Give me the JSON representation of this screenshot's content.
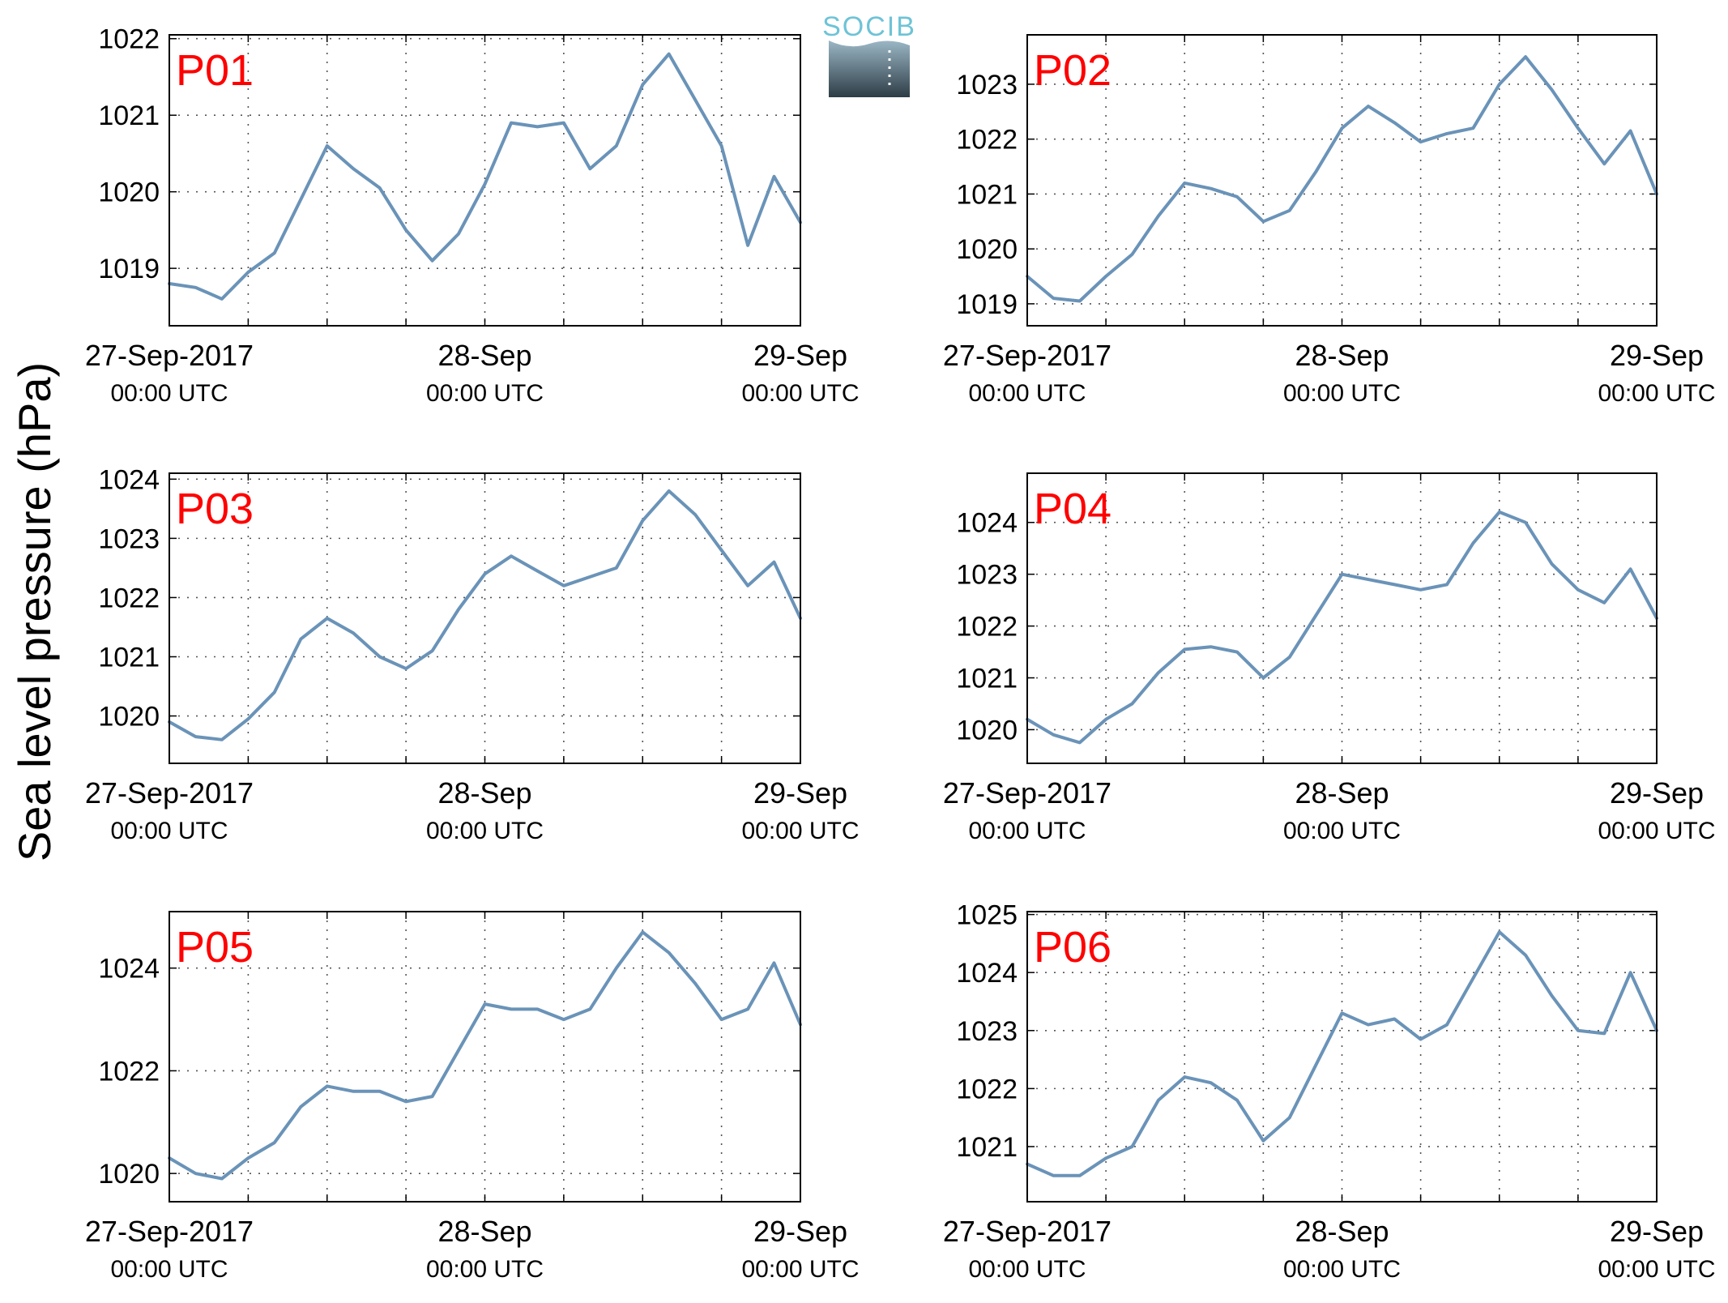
{
  "figure": {
    "ylabel": "Sea level pressure (hPa)",
    "logo_text": "SOCIB",
    "line_color": "#6a93b8",
    "label_color": "#ff0000",
    "grid": "dotted",
    "x_tick_dates": [
      "27-Sep-2017",
      "28-Sep",
      "29-Sep"
    ],
    "x_tick_times": [
      "00:00 UTC",
      "00:00 UTC",
      "00:00 UTC"
    ],
    "x_range": [
      "2017-09-27 00:00",
      "2017-09-29 00:00"
    ]
  },
  "chart_data": [
    {
      "type": "line",
      "title": "P01",
      "x": [
        "2017-09-27 00:00",
        "2017-09-27 02:00",
        "2017-09-27 04:00",
        "2017-09-27 06:00",
        "2017-09-27 08:00",
        "2017-09-27 10:00",
        "2017-09-27 12:00",
        "2017-09-27 14:00",
        "2017-09-27 16:00",
        "2017-09-27 18:00",
        "2017-09-27 20:00",
        "2017-09-27 22:00",
        "2017-09-28 00:00",
        "2017-09-28 02:00",
        "2017-09-28 04:00",
        "2017-09-28 06:00",
        "2017-09-28 08:00",
        "2017-09-28 10:00",
        "2017-09-28 12:00",
        "2017-09-28 14:00",
        "2017-09-28 16:00",
        "2017-09-28 18:00",
        "2017-09-28 20:00",
        "2017-09-28 22:00",
        "2017-09-29 00:00"
      ],
      "y": [
        1018.8,
        1018.75,
        1018.6,
        1018.95,
        1019.2,
        1019.9,
        1020.6,
        1020.3,
        1020.05,
        1019.5,
        1019.1,
        1019.45,
        1020.1,
        1020.9,
        1020.85,
        1020.9,
        1020.3,
        1020.6,
        1021.4,
        1021.8,
        1021.2,
        1020.6,
        1019.3,
        1020.2,
        1019.6
      ],
      "yticks": [
        1019,
        1020,
        1021,
        1022
      ],
      "ylim": [
        1018.25,
        1022.05
      ]
    },
    {
      "type": "line",
      "title": "P02",
      "x": [
        "2017-09-27 00:00",
        "2017-09-27 02:00",
        "2017-09-27 04:00",
        "2017-09-27 06:00",
        "2017-09-27 08:00",
        "2017-09-27 10:00",
        "2017-09-27 12:00",
        "2017-09-27 14:00",
        "2017-09-27 16:00",
        "2017-09-27 18:00",
        "2017-09-27 20:00",
        "2017-09-27 22:00",
        "2017-09-28 00:00",
        "2017-09-28 02:00",
        "2017-09-28 04:00",
        "2017-09-28 06:00",
        "2017-09-28 08:00",
        "2017-09-28 10:00",
        "2017-09-28 12:00",
        "2017-09-28 14:00",
        "2017-09-28 16:00",
        "2017-09-28 18:00",
        "2017-09-28 20:00",
        "2017-09-28 22:00",
        "2017-09-29 00:00"
      ],
      "y": [
        1019.5,
        1019.1,
        1019.05,
        1019.5,
        1019.9,
        1020.6,
        1021.2,
        1021.1,
        1020.95,
        1020.5,
        1020.7,
        1021.4,
        1022.2,
        1022.6,
        1022.3,
        1021.95,
        1022.1,
        1022.2,
        1023.0,
        1023.5,
        1022.9,
        1022.2,
        1021.55,
        1022.15,
        1021.0
      ],
      "yticks": [
        1019,
        1020,
        1021,
        1022,
        1023
      ],
      "ylim": [
        1018.6,
        1023.9
      ]
    },
    {
      "type": "line",
      "title": "P03",
      "x": [
        "2017-09-27 00:00",
        "2017-09-27 02:00",
        "2017-09-27 04:00",
        "2017-09-27 06:00",
        "2017-09-27 08:00",
        "2017-09-27 10:00",
        "2017-09-27 12:00",
        "2017-09-27 14:00",
        "2017-09-27 16:00",
        "2017-09-27 18:00",
        "2017-09-27 20:00",
        "2017-09-27 22:00",
        "2017-09-28 00:00",
        "2017-09-28 02:00",
        "2017-09-28 04:00",
        "2017-09-28 06:00",
        "2017-09-28 08:00",
        "2017-09-28 10:00",
        "2017-09-28 12:00",
        "2017-09-28 14:00",
        "2017-09-28 16:00",
        "2017-09-28 18:00",
        "2017-09-28 20:00",
        "2017-09-28 22:00",
        "2017-09-29 00:00"
      ],
      "y": [
        1019.9,
        1019.65,
        1019.6,
        1019.95,
        1020.4,
        1021.3,
        1021.65,
        1021.4,
        1021.0,
        1020.8,
        1021.1,
        1021.8,
        1022.4,
        1022.7,
        1022.45,
        1022.2,
        1022.35,
        1022.5,
        1023.3,
        1023.8,
        1023.4,
        1022.8,
        1022.2,
        1022.6,
        1021.65
      ],
      "yticks": [
        1020,
        1021,
        1022,
        1023,
        1024
      ],
      "ylim": [
        1019.2,
        1024.1
      ]
    },
    {
      "type": "line",
      "title": "P04",
      "x": [
        "2017-09-27 00:00",
        "2017-09-27 02:00",
        "2017-09-27 04:00",
        "2017-09-27 06:00",
        "2017-09-27 08:00",
        "2017-09-27 10:00",
        "2017-09-27 12:00",
        "2017-09-27 14:00",
        "2017-09-27 16:00",
        "2017-09-27 18:00",
        "2017-09-27 20:00",
        "2017-09-27 22:00",
        "2017-09-28 00:00",
        "2017-09-28 02:00",
        "2017-09-28 04:00",
        "2017-09-28 06:00",
        "2017-09-28 08:00",
        "2017-09-28 10:00",
        "2017-09-28 12:00",
        "2017-09-28 14:00",
        "2017-09-28 16:00",
        "2017-09-28 18:00",
        "2017-09-28 20:00",
        "2017-09-28 22:00",
        "2017-09-29 00:00"
      ],
      "y": [
        1020.2,
        1019.9,
        1019.75,
        1020.2,
        1020.5,
        1021.1,
        1021.55,
        1021.6,
        1021.5,
        1021.0,
        1021.4,
        1022.2,
        1023.0,
        1022.9,
        1022.8,
        1022.7,
        1022.8,
        1023.6,
        1024.2,
        1024.0,
        1023.2,
        1022.7,
        1022.45,
        1023.1,
        1022.15
      ],
      "yticks": [
        1020,
        1021,
        1022,
        1023,
        1024
      ],
      "ylim": [
        1019.35,
        1024.95
      ]
    },
    {
      "type": "line",
      "title": "P05",
      "x": [
        "2017-09-27 00:00",
        "2017-09-27 02:00",
        "2017-09-27 04:00",
        "2017-09-27 06:00",
        "2017-09-27 08:00",
        "2017-09-27 10:00",
        "2017-09-27 12:00",
        "2017-09-27 14:00",
        "2017-09-27 16:00",
        "2017-09-27 18:00",
        "2017-09-27 20:00",
        "2017-09-27 22:00",
        "2017-09-28 00:00",
        "2017-09-28 02:00",
        "2017-09-28 04:00",
        "2017-09-28 06:00",
        "2017-09-28 08:00",
        "2017-09-28 10:00",
        "2017-09-28 12:00",
        "2017-09-28 14:00",
        "2017-09-28 16:00",
        "2017-09-28 18:00",
        "2017-09-28 20:00",
        "2017-09-28 22:00",
        "2017-09-29 00:00"
      ],
      "y": [
        1020.3,
        1020.0,
        1019.9,
        1020.3,
        1020.6,
        1021.3,
        1021.7,
        1021.6,
        1021.6,
        1021.4,
        1021.5,
        1022.4,
        1023.3,
        1023.2,
        1023.2,
        1023.0,
        1023.2,
        1024.0,
        1024.7,
        1024.3,
        1023.7,
        1023.0,
        1023.2,
        1024.1,
        1022.9
      ],
      "yticks": [
        1020,
        1022,
        1024
      ],
      "ylim": [
        1019.45,
        1025.1
      ]
    },
    {
      "type": "line",
      "title": "P06",
      "x": [
        "2017-09-27 00:00",
        "2017-09-27 02:00",
        "2017-09-27 04:00",
        "2017-09-27 06:00",
        "2017-09-27 08:00",
        "2017-09-27 10:00",
        "2017-09-27 12:00",
        "2017-09-27 14:00",
        "2017-09-27 16:00",
        "2017-09-27 18:00",
        "2017-09-27 20:00",
        "2017-09-27 22:00",
        "2017-09-28 00:00",
        "2017-09-28 02:00",
        "2017-09-28 04:00",
        "2017-09-28 06:00",
        "2017-09-28 08:00",
        "2017-09-28 10:00",
        "2017-09-28 12:00",
        "2017-09-28 14:00",
        "2017-09-28 16:00",
        "2017-09-28 18:00",
        "2017-09-28 20:00",
        "2017-09-28 22:00",
        "2017-09-29 00:00"
      ],
      "y": [
        1020.7,
        1020.5,
        1020.5,
        1020.8,
        1021.0,
        1021.8,
        1022.2,
        1022.1,
        1021.8,
        1021.1,
        1021.5,
        1022.4,
        1023.3,
        1023.1,
        1023.2,
        1022.85,
        1023.1,
        1023.9,
        1024.7,
        1024.3,
        1023.6,
        1023.0,
        1022.95,
        1024.0,
        1023.0
      ],
      "yticks": [
        1021,
        1022,
        1023,
        1024,
        1025
      ],
      "ylim": [
        1020.05,
        1025.05
      ]
    }
  ]
}
